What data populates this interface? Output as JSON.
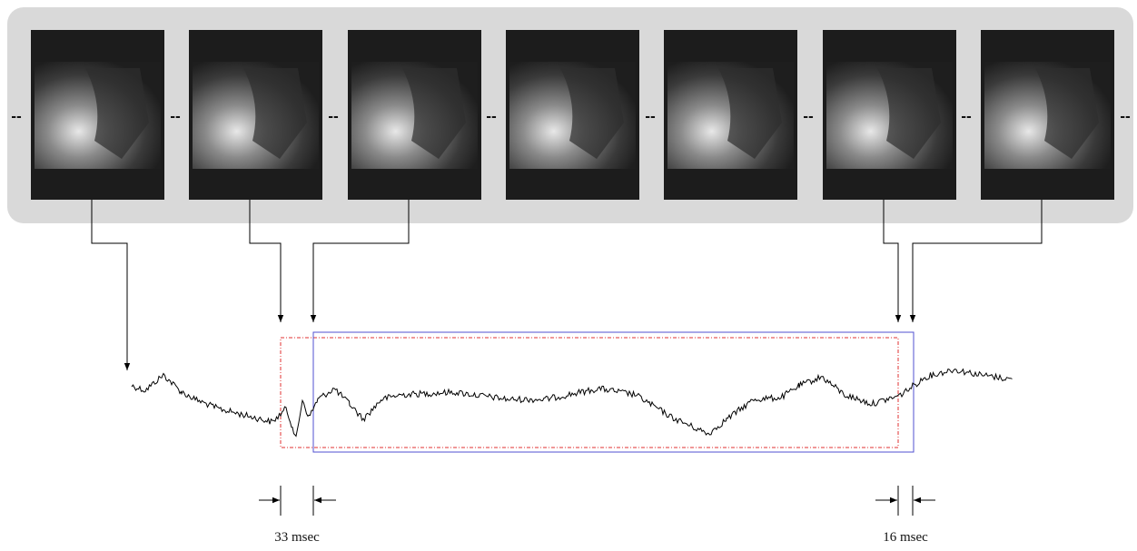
{
  "frame_separators": [
    "--",
    "--",
    "--",
    "--",
    "--",
    "--",
    "--",
    "--"
  ],
  "interval_labels": [
    "33 msec",
    "16 msec"
  ]
}
